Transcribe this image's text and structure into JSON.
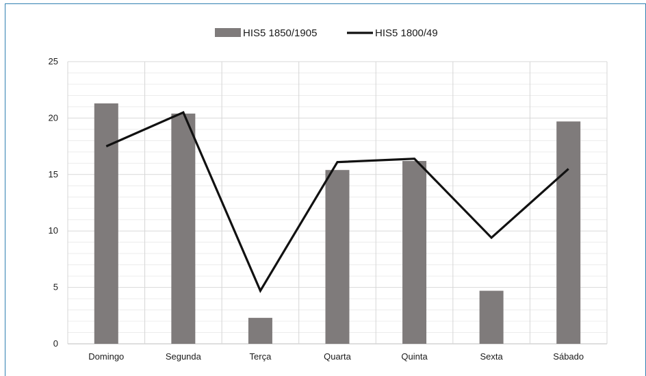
{
  "chart_data": {
    "type": "bar",
    "title": "",
    "xlabel": "",
    "ylabel": "",
    "categories": [
      "Domingo",
      "Segunda",
      "Terça",
      "Quarta",
      "Quinta",
      "Sexta",
      "Sábado"
    ],
    "ylim": [
      0,
      25
    ],
    "yticks": [
      0,
      5,
      10,
      15,
      20,
      25
    ],
    "grid": {
      "major_horizontal": true,
      "minor_horizontal": true,
      "vertical_category_lines": true
    },
    "legend_position": "top-center",
    "series": [
      {
        "name": "HIS5 1850/1905",
        "type": "bar",
        "color": "#7f7b7b",
        "values": [
          21.3,
          20.4,
          2.3,
          15.4,
          16.2,
          4.7,
          19.7
        ]
      },
      {
        "name": "HIS5 1800/49",
        "type": "line",
        "color": "#111111",
        "values": [
          17.5,
          20.5,
          4.7,
          16.1,
          16.4,
          9.4,
          15.5
        ]
      }
    ]
  }
}
